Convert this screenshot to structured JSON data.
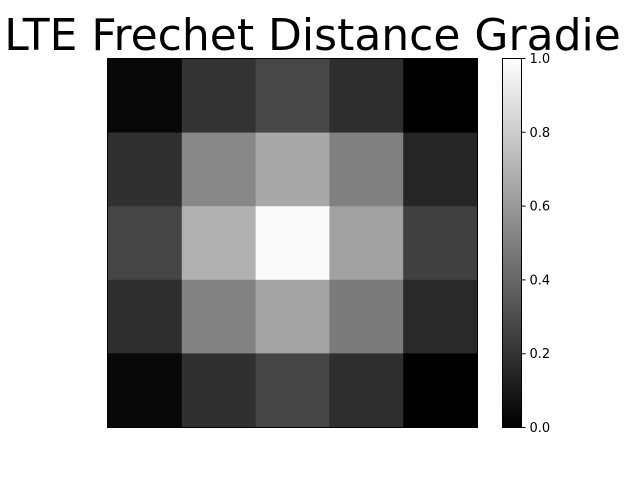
{
  "chart_data": {
    "type": "heatmap",
    "title": "e LTE Frechet Distance Gradie",
    "xlabel": "",
    "ylabel": "",
    "colormap": "gray",
    "colorbar": {
      "range": [
        0.0,
        1.0
      ],
      "ticks": [
        "0.0",
        "0.2",
        "0.4",
        "0.6",
        "0.8",
        "1.0"
      ]
    },
    "grid": false,
    "values": [
      [
        0.03,
        0.2,
        0.28,
        0.18,
        0.0
      ],
      [
        0.19,
        0.53,
        0.66,
        0.5,
        0.15
      ],
      [
        0.27,
        0.69,
        0.98,
        0.63,
        0.25
      ],
      [
        0.18,
        0.51,
        0.64,
        0.48,
        0.16
      ],
      [
        0.03,
        0.19,
        0.27,
        0.18,
        0.0
      ]
    ]
  }
}
